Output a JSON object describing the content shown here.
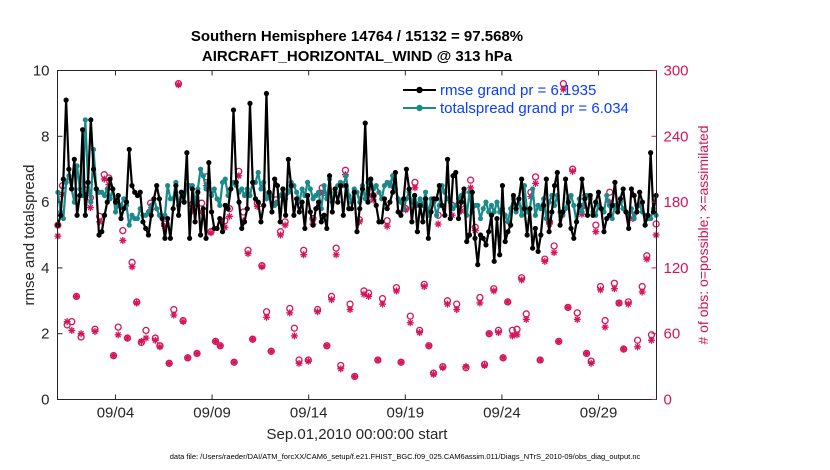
{
  "chart_data": {
    "type": "line",
    "title_line1": "Southern Hemisphere 14764 / 15132 = 97.568%",
    "title_line2": "AIRCRAFT_HORIZONTAL_WIND @ 313 hPa",
    "xlabel": "Sep.01,2010 00:00:00 start",
    "ylabel_left": "rmse and totalspread",
    "ylabel_right": "# of obs: o=possible; ×=assimilated",
    "xlim": [
      0,
      31
    ],
    "ylim_left": [
      0,
      10
    ],
    "ylim_right": [
      0,
      300
    ],
    "x_tick_values": [
      3,
      8,
      13,
      18,
      23,
      28
    ],
    "x_tick_labels": [
      "09/04",
      "09/09",
      "09/14",
      "09/19",
      "09/24",
      "09/29"
    ],
    "y_left_ticks": [
      "0",
      "2",
      "4",
      "6",
      "8",
      "10"
    ],
    "y_right_ticks": [
      "0",
      "60",
      "120",
      "180",
      "240",
      "300"
    ],
    "footnote": "data file: /Users/raeder/DAI/ATM_forcXX/CAM6_setup/f.e21.FHIST_BGC.f09_025.CAM6assim.011/Diags_NTrS_2010-09/obs_diag_output.nc",
    "colors": {
      "rmse": "#000000",
      "spread": "#1a8a8a",
      "obs": "#d4145a",
      "legend_text": "#0a3cff"
    },
    "series": [
      {
        "name": "rmse grand pr = 6.1935",
        "values": [
          5.3,
          5.6,
          6.7,
          9.1,
          7.0,
          6.4,
          7.3,
          5.6,
          6.2,
          8.2,
          5.6,
          6.6,
          8.5,
          7.0,
          6.4,
          5.0,
          5.1,
          5.6,
          6.0,
          6.7,
          6.4,
          6.0,
          6.2,
          5.5,
          5.8,
          6.0,
          7.6,
          6.5,
          6.3,
          6.2,
          6.3,
          5.4,
          5.2,
          5.0,
          5.6,
          6.1,
          6.5,
          6.1,
          5.5,
          4.9,
          5.5,
          4.9,
          5.8,
          6.5,
          5.6,
          6.3,
          6.0,
          7.5,
          4.9,
          6.4,
          5.4,
          6.3,
          5.0,
          5.8,
          4.9,
          7.2,
          5.7,
          5.2,
          5.2,
          5.5,
          5.1,
          5.9,
          5.8,
          6.4,
          8.8,
          6.6,
          6.0,
          5.2,
          5.4,
          5.8,
          9.0,
          6.6,
          6.1,
          6.0,
          5.4,
          5.9,
          9.3,
          6.3,
          5.7,
          6.7,
          6.5,
          5.4,
          6.4,
          5.6,
          7.3,
          6.5,
          5.6,
          6.1,
          5.7,
          6.0,
          5.2,
          6.2,
          5.7,
          5.3,
          5.8,
          6.0,
          5.4,
          5.6,
          5.2,
          6.8,
          5.7,
          6.4,
          6.0,
          6.5,
          5.6,
          6.5,
          5.8,
          5.8,
          6.3,
          5.1,
          5.8,
          6.4,
          8.4,
          6.0,
          6.7,
          6.2,
          5.9,
          5.4,
          5.4,
          6.1,
          5.8,
          6.0,
          6.3,
          6.9,
          5.7,
          5.6,
          6.1,
          7.0,
          6.4,
          5.4,
          6.2,
          5.1,
          5.9,
          5.4,
          6.1,
          4.9,
          5.7,
          6.1,
          6.1,
          6.5,
          5.9,
          5.6,
          7.3,
          5.5,
          6.8,
          6.9,
          5.5,
          6.0,
          6.4,
          4.8,
          5.0,
          6.3,
          4.9,
          4.1,
          5.0,
          4.9,
          4.7,
          5.1,
          5.6,
          4.2,
          5.5,
          4.4,
          6.5,
          4.8,
          5.1,
          5.3,
          6.2,
          5.8,
          6.1,
          6.7,
          5.8,
          5.0,
          5.8,
          4.6,
          5.2,
          4.5,
          5.0,
          5.9,
          6.7,
          5.1,
          5.7,
          6.5,
          6.9,
          5.3,
          5.7,
          6.7,
          6.0,
          5.2,
          4.9,
          5.4,
          5.9,
          6.7,
          6.1,
          5.6,
          6.2,
          5.6,
          6.0,
          6.3,
          5.8,
          5.1,
          5.5,
          5.6,
          5.9,
          6.6,
          5.7,
          6.1,
          6.4,
          5.7,
          5.2,
          6.4,
          6.2,
          5.7,
          6.3,
          6.0,
          5.3,
          5.6,
          7.5,
          5.7,
          6.2
        ]
      },
      {
        "name": "totalspread grand pr = 6.034",
        "values": [
          6.3,
          5.7,
          5.5,
          6.6,
          6.8,
          6.4,
          6.0,
          7.1,
          6.4,
          6.2,
          8.5,
          6.6,
          6.0,
          7.6,
          6.4,
          6.3,
          6.3,
          6.2,
          6.4,
          6.1,
          6.4,
          5.7,
          5.9,
          5.9,
          6.1,
          5.9,
          5.3,
          5.6,
          5.5,
          5.5,
          5.8,
          5.6,
          5.6,
          5.7,
          5.9,
          6.1,
          5.8,
          5.6,
          5.5,
          5.6,
          6.5,
          6.1,
          6.1,
          6.6,
          5.9,
          6.3,
          6.0,
          6.5,
          6.5,
          6.5,
          6.0,
          6.4,
          7.0,
          6.8,
          6.4,
          6.6,
          6.2,
          6.4,
          6.1,
          5.9,
          6.6,
          6.7,
          6.2,
          6.4,
          6.6,
          6.5,
          6.3,
          6.4,
          6.2,
          6.4,
          6.2,
          6.6,
          6.6,
          6.9,
          6.4,
          6.6,
          6.1,
          6.2,
          6.2,
          5.9,
          6.0,
          6.2,
          6.4,
          6.1,
          6.3,
          6.6,
          6.5,
          6.3,
          6.0,
          6.4,
          6.2,
          6.6,
          6.4,
          6.1,
          6.2,
          6.3,
          5.8,
          6.5,
          6.1,
          6.7,
          6.0,
          6.3,
          6.5,
          6.6,
          6.5,
          6.8,
          6.2,
          6.0,
          6.4,
          6.3,
          6.0,
          6.5,
          6.1,
          6.6,
          6.7,
          6.4,
          6.5,
          6.3,
          6.1,
          6.5,
          6.6,
          6.5,
          6.8,
          6.4,
          6.1,
          6.0,
          5.8,
          6.1,
          6.3,
          6.0,
          6.2,
          5.9,
          6.1,
          5.9,
          6.3,
          5.6,
          6.1,
          6.0,
          5.6,
          5.9,
          6.5,
          6.3,
          6.1,
          6.0,
          5.8,
          5.9,
          6.1,
          6.2,
          6.3,
          5.6,
          6.3,
          5.7,
          5.9,
          5.9,
          5.5,
          5.8,
          6.0,
          5.7,
          5.9,
          5.7,
          6.0,
          5.7,
          5.8,
          5.6,
          5.4,
          5.8,
          6.1,
          5.7,
          6.1,
          5.6,
          6.5,
          5.7,
          5.8,
          6.4,
          5.6,
          5.9,
          5.8,
          6.1,
          5.5,
          6.0,
          6.2,
          5.9,
          6.2,
          5.7,
          5.6,
          5.8,
          6.1,
          6.2,
          5.9,
          5.4,
          6.1,
          5.7,
          6.2,
          6.2,
          6.1,
          5.7,
          5.6,
          5.9,
          5.8,
          5.7,
          6.2,
          5.9,
          5.5,
          5.9,
          5.8,
          6.0,
          5.8,
          5.7,
          5.6,
          5.8,
          5.5,
          5.9,
          5.9,
          5.7,
          5.6,
          5.5,
          5.5,
          5.8,
          5.6
        ]
      },
      {
        "name": "obs possible",
        "values": [
          159,
          195,
          68,
          71,
          94,
          57,
          191,
          184,
          64,
          167,
          205,
          202,
          40,
          66,
          154,
          56,
          125,
          89,
          52,
          63,
          179,
          56,
          49,
          160,
          33,
          82,
          288,
          72,
          38,
          178,
          42,
          179,
          203,
          153,
          53,
          49,
          163,
          174,
          34,
          208,
          171,
          136,
          55,
          179,
          122,
          80,
          44,
          182,
          153,
          162,
          83,
          65,
          36,
          136,
          36,
          165,
          82,
          193,
          49,
          94,
          138,
          31,
          209,
          87,
          21,
          164,
          99,
          97,
          186,
          36,
          92,
          163,
          197,
          102,
          34,
          174,
          76,
          198,
          63,
          105,
          49,
          24,
          168,
          30,
          90,
          177,
          87,
          178,
          29,
          200,
          157,
          93,
          32,
          60,
          101,
          63,
          38,
          89,
          63,
          64,
          111,
          78,
          189,
          203,
          36,
          128,
          162,
          140,
          53,
          288,
          84,
          210,
          79,
          176,
          42,
          35,
          159,
          103,
          72,
          189,
          106,
          88,
          46,
          89,
          168,
          54,
          103,
          131,
          59,
          160
        ]
      },
      {
        "name": "obs assimilated",
        "values": [
          149,
          187,
          71,
          63,
          94,
          60,
          186,
          175,
          62,
          162,
          201,
          196,
          40,
          59,
          145,
          56,
          121,
          88,
          53,
          56,
          173,
          54,
          48,
          158,
          33,
          77,
          287,
          71,
          38,
          172,
          42,
          171,
          195,
          152,
          53,
          49,
          157,
          167,
          34,
          204,
          163,
          133,
          55,
          176,
          121,
          75,
          44,
          179,
          150,
          159,
          79,
          58,
          33,
          132,
          35,
          160,
          80,
          188,
          49,
          91,
          132,
          28,
          205,
          82,
          21,
          162,
          96,
          94,
          182,
          36,
          87,
          158,
          195,
          99,
          34,
          173,
          70,
          193,
          61,
          103,
          49,
          23,
          160,
          29,
          87,
          168,
          82,
          172,
          30,
          193,
          154,
          88,
          31,
          60,
          99,
          61,
          38,
          89,
          58,
          59,
          109,
          73,
          185,
          197,
          36,
          126,
          160,
          134,
          53,
          283,
          84,
          208,
          73,
          169,
          42,
          33,
          153,
          100,
          66,
          180,
          101,
          88,
          46,
          87,
          165,
          48,
          98,
          128,
          54,
          150
        ]
      }
    ]
  }
}
